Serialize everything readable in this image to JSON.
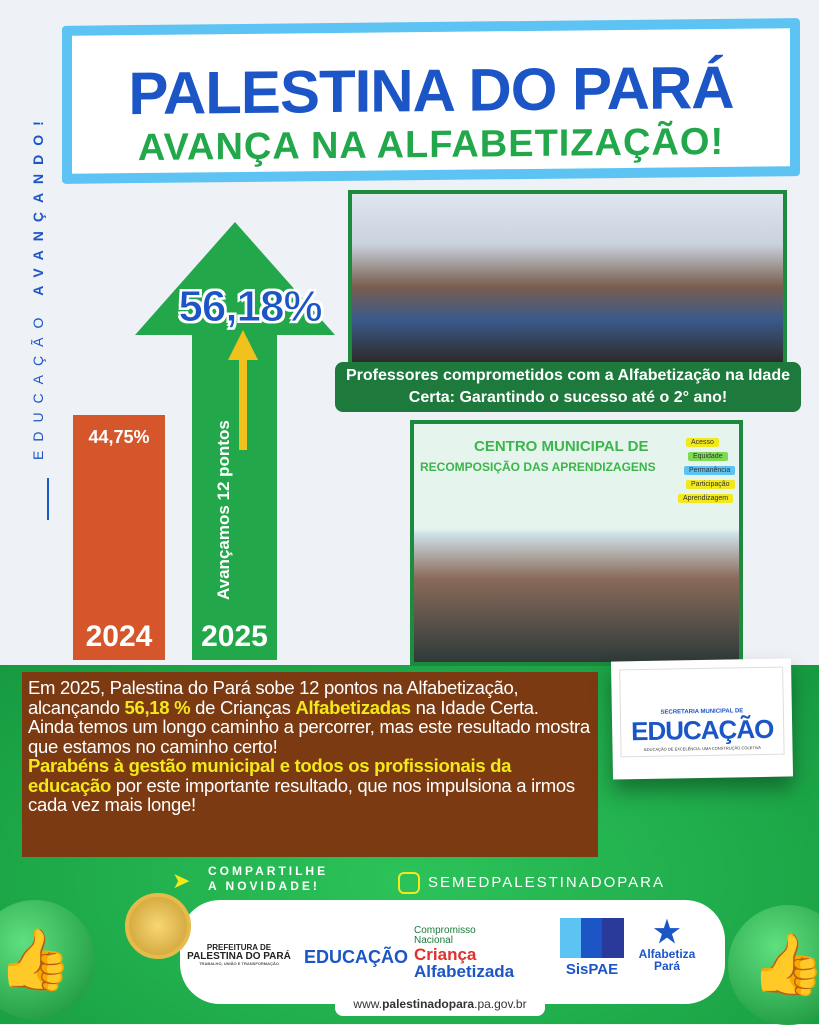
{
  "header": {
    "title": "PALESTINA DO PARÁ",
    "subtitle": "AVANÇA NA ALFABETIZAÇÃO!"
  },
  "side_text": {
    "part1": "EDUCAÇÃO",
    "part2": "AVANÇANDO!"
  },
  "comparison": {
    "bars": [
      {
        "year": "2024",
        "value_label": "44,75%",
        "value": 44.75,
        "color": "#d4562a"
      },
      {
        "year": "2025",
        "value_label": "56,18%",
        "value": 56.18,
        "color": "#22a84a"
      }
    ],
    "arrow_text": "Avançamos 12 pontos"
  },
  "photo1": {
    "caption": "Professores comprometidos com a Alfabetização na Idade Certa: Garantindo o sucesso até o 2° ano!"
  },
  "photo2": {
    "banner_line1": "CENTRO MUNICIPAL DE",
    "banner_line2": "RECOMPOSIÇÃO DAS APRENDIZAGENS",
    "signs": [
      "Acesso",
      "Equidade",
      "Permanência",
      "Participação",
      "Aprendizagem"
    ]
  },
  "message": {
    "p1a": "Em 2025, Palestina do Pará sobe  12  pontos na Alfabetização,  alcançando ",
    "p1b": "56,18 %",
    "p1c": " de Crianças ",
    "p1d": "Alfabetizadas",
    "p1e": " na Idade Certa.",
    "p2": "Ainda temos um longo caminho a percorrer, mas este resultado mostra que estamos no caminho certo!",
    "p3a": "Parabéns à gestão municipal e todos os profissionais da educação",
    "p3b": " por este importante resultado, que nos impulsiona a irmos cada vez mais longe!"
  },
  "polaroid": {
    "top": "SECRETARIA MUNICIPAL DE",
    "main": "EDUCAÇÃO",
    "tagline": "EDUCAÇÃO DE EXCELÊNCIA: UMA CONSTRUÇÃO COLETIVA"
  },
  "share": {
    "line1": "COMPARTILHE",
    "line2": "A NOVIDADE!",
    "instagram": "SEMEDPALESTINADOPARA"
  },
  "logos": {
    "prefeitura_top": "PREFEITURA DE",
    "prefeitura_main": "PALESTINA DO PARÁ",
    "prefeitura_sub": "TRABALHO, UNIÃO E TRANSFORMAÇÃO",
    "educacao": "EDUCAÇÃO",
    "compromisso1": "Compromisso",
    "compromisso2": "Nacional",
    "crianca": "Criança",
    "alfabetizada": "Alfabetizada",
    "sispae": "SisPAE",
    "alfabetiza": "Alfabetiza",
    "para": "Pará"
  },
  "footer": {
    "url_prefix": "www.",
    "url_bold": "palestinadopara",
    "url_suffix": ".pa.gov.br"
  },
  "colors": {
    "blue": "#1b55c6",
    "green": "#22a84a",
    "orange": "#d4562a",
    "brown": "#7b3a12",
    "yellow": "#f2e81c"
  }
}
